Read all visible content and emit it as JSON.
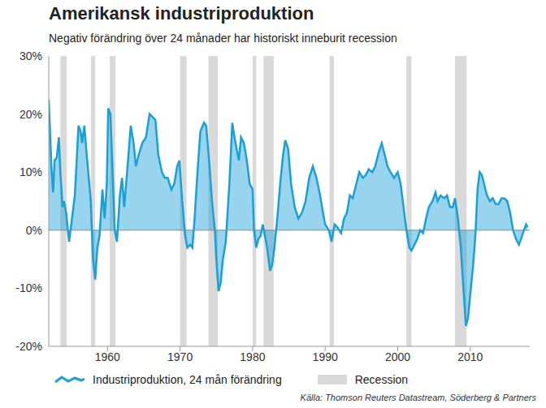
{
  "chart_data": {
    "type": "area",
    "title": "Amerikansk industriproduktion",
    "subtitle": "Negativ förändring över 24 månader har historiskt inneburit recession",
    "source": "Källa: Thomson Reuters Datastream, Söderberg & Partners",
    "x": [
      1951.9,
      1952.3,
      1952.5,
      1952.7,
      1953.0,
      1953.3,
      1953.5,
      1953.8,
      1954.0,
      1954.3,
      1954.7,
      1955.0,
      1955.5,
      1956.0,
      1956.3,
      1956.5,
      1956.8,
      1957.2,
      1957.7,
      1958.0,
      1958.3,
      1958.6,
      1958.9,
      1959.3,
      1959.6,
      1959.9,
      1960.1,
      1960.4,
      1960.7,
      1961.0,
      1961.3,
      1961.7,
      1962.0,
      1962.3,
      1962.7,
      1963.2,
      1963.6,
      1963.9,
      1964.3,
      1964.8,
      1965.3,
      1965.8,
      1966.2,
      1966.6,
      1967.0,
      1967.5,
      1967.9,
      1968.3,
      1968.8,
      1969.2,
      1969.6,
      1969.9,
      1970.3,
      1970.7,
      1971.0,
      1971.4,
      1971.7,
      1972.0,
      1972.4,
      1972.8,
      1973.3,
      1973.6,
      1974.0,
      1974.4,
      1974.8,
      1975.0,
      1975.3,
      1975.6,
      1975.9,
      1976.3,
      1976.8,
      1977.2,
      1977.5,
      1977.8,
      1978.1,
      1978.4,
      1978.8,
      1979.2,
      1979.6,
      1980.0,
      1980.2,
      1980.5,
      1980.8,
      1981.1,
      1981.4,
      1981.7,
      1982.0,
      1982.4,
      1982.7,
      1983.0,
      1983.4,
      1983.8,
      1984.2,
      1984.5,
      1984.9,
      1985.3,
      1985.8,
      1986.3,
      1986.8,
      1987.3,
      1987.8,
      1988.3,
      1988.8,
      1989.3,
      1989.7,
      1990.0,
      1990.5,
      1990.9,
      1991.3,
      1991.7,
      1992.2,
      1992.6,
      1993.0,
      1993.4,
      1993.8,
      1994.3,
      1994.7,
      1995.2,
      1995.6,
      1996.0,
      1996.5,
      1996.9,
      1997.4,
      1997.8,
      1998.2,
      1998.6,
      1999.0,
      1999.5,
      2000.0,
      2000.4,
      2000.8,
      2001.2,
      2001.6,
      2001.9,
      2002.3,
      2002.7,
      2003.1,
      2003.5,
      2003.9,
      2004.3,
      2004.8,
      2005.2,
      2005.5,
      2005.9,
      2006.4,
      2006.8,
      2007.2,
      2007.6,
      2007.9,
      2008.3,
      2008.7,
      2009.0,
      2009.4,
      2009.7,
      2010.0,
      2010.4,
      2010.7,
      2011.0,
      2011.3,
      2011.6,
      2011.9,
      2012.3,
      2012.7,
      2013.1,
      2013.5,
      2013.9,
      2014.3,
      2014.7,
      2015.1,
      2015.5,
      2015.9,
      2016.3,
      2016.7,
      2017.0,
      2017.4,
      2017.7,
      2017.9
    ],
    "series": [
      {
        "name": "Industriproduktion, 24 mån förändring",
        "color": "#1aa0d6",
        "values": [
          22.5,
          10,
          6.5,
          12,
          12.5,
          16,
          10,
          4,
          5,
          3,
          -2,
          1,
          6,
          18,
          17,
          15,
          18,
          12,
          5,
          -5,
          -8.5,
          -3,
          -1,
          7,
          2,
          8,
          21,
          20,
          10,
          0,
          -2,
          6,
          9,
          4,
          10,
          18,
          15,
          11,
          13,
          15,
          16,
          20,
          19.5,
          19,
          13,
          10,
          9,
          9,
          7,
          8,
          11,
          12,
          5,
          -1,
          -3,
          -2.5,
          -3,
          2,
          10,
          17,
          18.5,
          18,
          12,
          5,
          0,
          -5,
          -10.5,
          -9,
          -5,
          -2,
          8,
          18.5,
          16,
          14,
          12,
          16,
          15,
          12,
          8,
          7,
          0,
          -3,
          -1.5,
          -1,
          1,
          -1,
          -3,
          -7,
          -6,
          -3,
          2,
          8,
          13,
          15.5,
          14,
          8,
          4,
          2,
          3,
          5,
          9,
          11,
          9,
          6,
          3,
          1,
          0,
          -2,
          1,
          0.5,
          -0.5,
          2,
          3,
          6,
          5.5,
          8,
          10,
          9,
          9.5,
          10.5,
          10,
          11,
          13.5,
          15,
          13,
          11,
          10,
          9,
          10,
          8,
          4,
          0,
          -3,
          -3.5,
          -2.5,
          -1.5,
          0,
          -0.5,
          2,
          4,
          5,
          6.5,
          5,
          6,
          5.5,
          6,
          4,
          4,
          5.5,
          2,
          -3,
          -9,
          -16.5,
          -15,
          -11,
          -6,
          -1,
          7,
          10,
          9.5,
          8,
          6,
          5,
          5.5,
          4.5,
          4.5,
          5.5,
          5.5,
          5,
          3,
          0,
          -1.5,
          -2.5,
          -1.5,
          0,
          1,
          0.5
        ]
      }
    ],
    "recessions": {
      "name": "Recession",
      "color": "#d9d9d9",
      "ranges": [
        [
          1953.5,
          1954.4
        ],
        [
          1957.7,
          1958.3
        ],
        [
          1960.3,
          1961.1
        ],
        [
          1970.0,
          1970.9
        ],
        [
          1973.9,
          1975.2
        ],
        [
          1980.0,
          1980.5
        ],
        [
          1981.5,
          1982.9
        ],
        [
          1990.6,
          1991.2
        ],
        [
          2001.2,
          2001.9
        ],
        [
          2007.9,
          2009.5
        ]
      ]
    },
    "xlim": [
      1951.9,
      2018.2
    ],
    "xticks": [
      1960,
      1970,
      1980,
      1990,
      2000,
      2010
    ],
    "ylim": [
      -20,
      30
    ],
    "yticks": [
      {
        "value": -20,
        "label": "-20%"
      },
      {
        "value": -10,
        "label": "-10%"
      },
      {
        "value": 0,
        "label": "0%"
      },
      {
        "value": 10,
        "label": "10%"
      },
      {
        "value": 20,
        "label": "20%"
      },
      {
        "value": 30,
        "label": "30%"
      }
    ],
    "grid": false,
    "legend": "bottom"
  }
}
